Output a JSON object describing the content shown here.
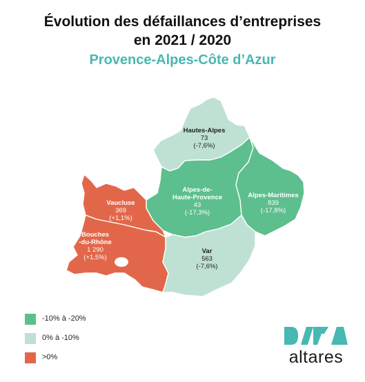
{
  "title": {
    "line1": "Évolution des défaillances d’entreprises",
    "line2": "en 2021 / 2020"
  },
  "subtitle": "Provence-Alpes-Côte d’Azur",
  "colors": {
    "dark_green": "#5dbf8e",
    "light_green": "#bfe1d4",
    "orange": "#e2674a",
    "teal_text": "#47b8b2"
  },
  "departments": [
    {
      "id": "hautes-alpes",
      "name_lines": [
        "Hautes-Alpes"
      ],
      "value": "73",
      "change": "(-7,6%)",
      "category": "light"
    },
    {
      "id": "alpes-de-haute-provence",
      "name_lines": [
        "Alpes-de-",
        "Haute-Provence"
      ],
      "value": "43",
      "change": "(-17,3%)",
      "category": "dark"
    },
    {
      "id": "alpes-maritimes",
      "name_lines": [
        "Alpes-Maritimes"
      ],
      "value": "839",
      "change": "(-17,8%)",
      "category": "dark"
    },
    {
      "id": "vaucluse",
      "name_lines": [
        "Vaucluse"
      ],
      "value": "369",
      "change": "(+1,1%)",
      "category": "orange"
    },
    {
      "id": "bouches-du-rhone",
      "name_lines": [
        "Bouches",
        "-du-Rhône"
      ],
      "value": "1 290",
      "change": "(+1,5%)",
      "category": "orange"
    },
    {
      "id": "var",
      "name_lines": [
        "Var"
      ],
      "value": "563",
      "change": "(-7,6%)",
      "category": "light"
    }
  ],
  "legend": [
    {
      "label": "-10% à -20%",
      "color": "#5dbf8e"
    },
    {
      "label": "0% à -10%",
      "color": "#bfe1d4"
    },
    {
      "label": ">0%",
      "color": "#e2674a"
    }
  ],
  "brand": {
    "logo_text": "DATA",
    "wordmark": "altares",
    "logo_color": "#47b8b2"
  }
}
